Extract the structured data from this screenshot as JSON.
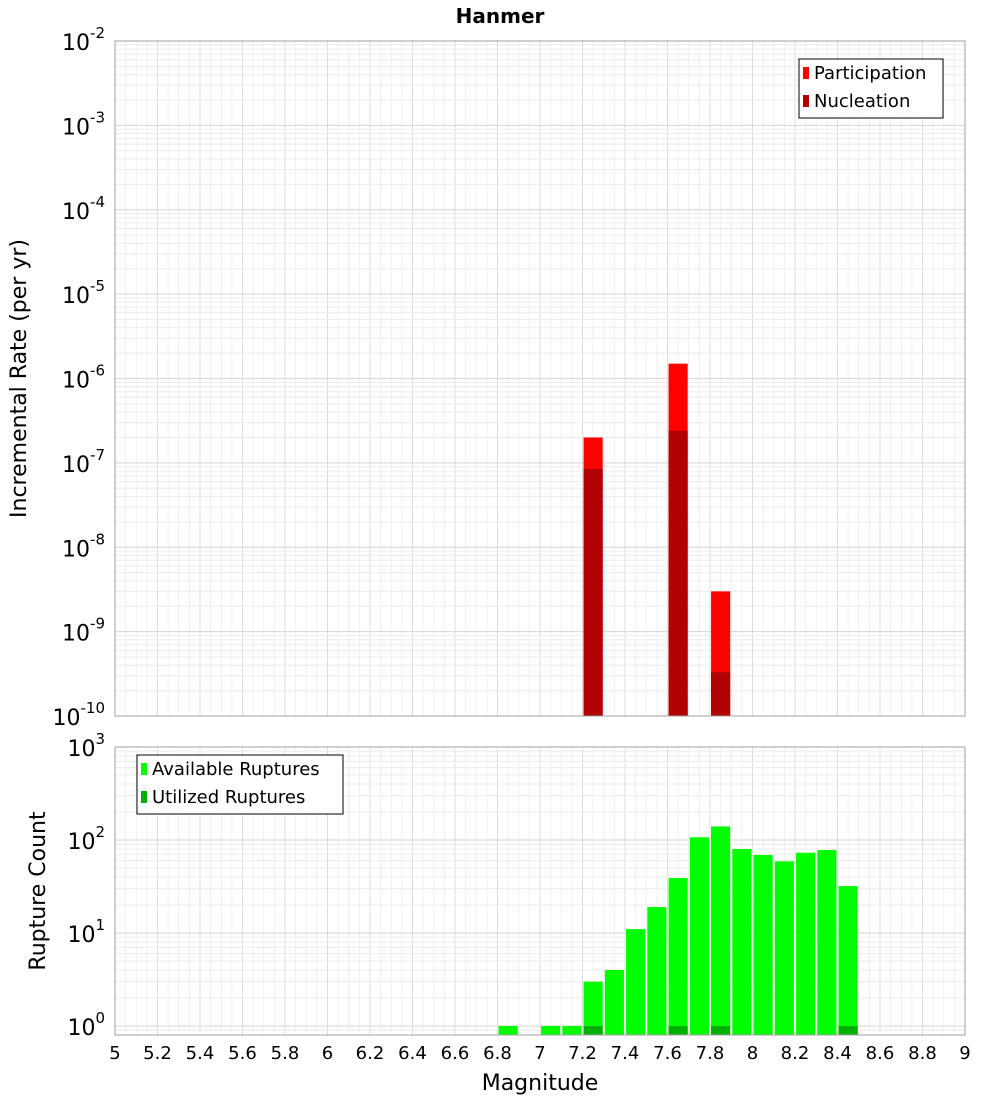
{
  "title": "Hanmer",
  "colors": {
    "participation": "#ff0000",
    "nucleation": "#b00000",
    "available": "#00ff00",
    "utilized": "#00b000",
    "grid": "#e6e6e6",
    "frame": "#a0a0a0"
  },
  "x_axis": {
    "label": "Magnitude",
    "range": [
      5,
      9
    ],
    "tick_labels": [
      "5",
      "5.2",
      "5.4",
      "5.6",
      "5.8",
      "6",
      "6.2",
      "6.4",
      "6.6",
      "6.8",
      "7",
      "7.2",
      "7.4",
      "7.6",
      "7.8",
      "8",
      "8.2",
      "8.4",
      "8.6",
      "8.8",
      "9"
    ]
  },
  "chart_data": [
    {
      "type": "bar",
      "title": "Hanmer",
      "xlabel": "",
      "ylabel": "Incremental Rate (per yr)",
      "yscale": "log",
      "ylim": [
        1e-10,
        0.01
      ],
      "xlim": [
        5,
        9
      ],
      "y_tick_exponents": [
        "-10",
        "-9",
        "-8",
        "-7",
        "-6",
        "-5",
        "-4",
        "-3",
        "-2"
      ],
      "grid": true,
      "legend_position": "top-right",
      "series": [
        {
          "name": "Participation",
          "color": "#ff0000",
          "x": [
            7.25,
            7.65,
            7.85
          ],
          "values": [
            2e-07,
            1.5e-06,
            3e-09
          ]
        },
        {
          "name": "Nucleation",
          "color": "#b00000",
          "x": [
            7.25,
            7.65,
            7.85
          ],
          "values": [
            8.5e-08,
            2.4e-07,
            3.3e-10
          ]
        }
      ]
    },
    {
      "type": "bar",
      "title": "",
      "xlabel": "Magnitude",
      "ylabel": "Rupture Count",
      "yscale": "log",
      "ylim": [
        0.8,
        1000
      ],
      "xlim": [
        5,
        9
      ],
      "y_tick_exponents": [
        "0",
        "1",
        "2",
        "3"
      ],
      "grid": true,
      "legend_position": "top-left",
      "series": [
        {
          "name": "Available Ruptures",
          "color": "#00ff00",
          "x": [
            6.85,
            7.05,
            7.15,
            7.25,
            7.35,
            7.45,
            7.55,
            7.65,
            7.75,
            7.85,
            7.95,
            8.05,
            8.15,
            8.25,
            8.35,
            8.45
          ],
          "values": [
            1,
            1,
            1,
            3,
            4,
            11,
            19,
            39,
            107,
            140,
            80,
            69,
            59,
            73,
            78,
            32
          ]
        },
        {
          "name": "Utilized Ruptures",
          "color": "#00b000",
          "x": [
            7.25,
            7.65,
            7.85,
            8.45
          ],
          "values": [
            1,
            1,
            1,
            1
          ]
        }
      ]
    }
  ]
}
